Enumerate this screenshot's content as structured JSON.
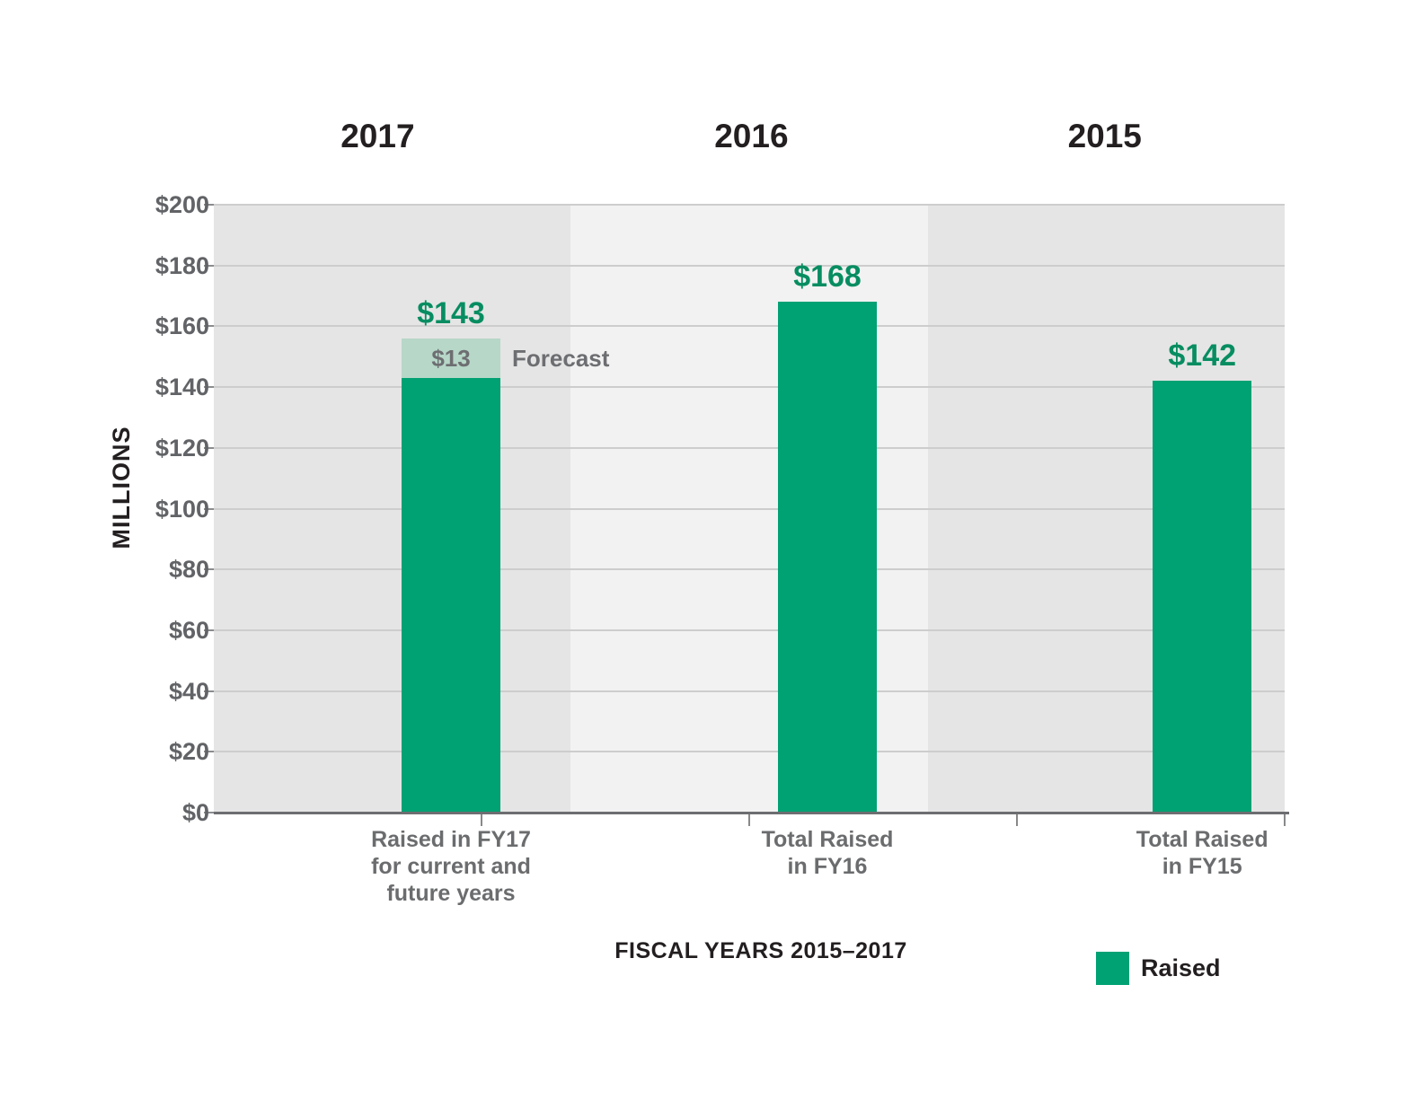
{
  "chart_data": {
    "type": "bar",
    "year_headers": [
      "2017",
      "2016",
      "2015"
    ],
    "ylabel": "MILLIONS",
    "xlabel": "FISCAL YEARS 2015–2017",
    "ylim": [
      0,
      200
    ],
    "ytick_step": 20,
    "ytick_prefix": "$",
    "grid": true,
    "categories": [
      "Raised in FY17\nfor current and\nfuture years",
      "Total Raised\nin FY16",
      "Total Raised\nin FY15"
    ],
    "series": [
      {
        "name": "Raised",
        "values": [
          143,
          168,
          142
        ]
      },
      {
        "name": "Forecast",
        "values": [
          13,
          0,
          0
        ]
      }
    ],
    "bar_value_labels": [
      "$143",
      "$168",
      "$142"
    ],
    "forecast_annotation": {
      "value_label": "$13",
      "text": "Forecast"
    },
    "legend": {
      "items": [
        {
          "label": "Raised"
        }
      ],
      "position": "bottom-right"
    },
    "band_colors": [
      "#E5E5E5",
      "#F2F2F2",
      "#E5E5E5"
    ]
  },
  "colors": {
    "bar_green": "#00A173",
    "forecast_green": "#B7D7C8",
    "value_label_green": "#078D61",
    "gray_text": "#616366",
    "dark_text": "#231F20",
    "gridline": "#CDCDCD",
    "axis_line": "#6D6E71"
  }
}
